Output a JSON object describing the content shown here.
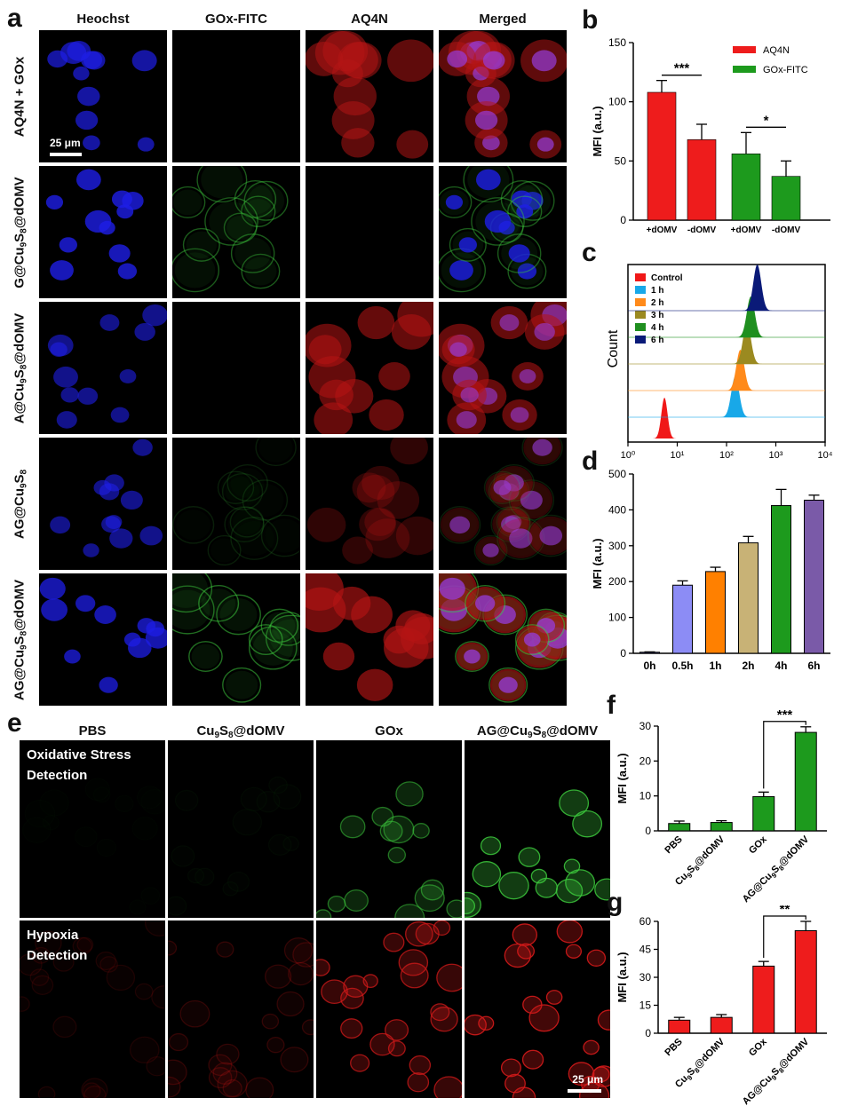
{
  "panel_a": {
    "letter": "a",
    "columns": [
      "Heochst",
      "GOx-FITC",
      "AQ4N",
      "Merged"
    ],
    "rows": [
      {
        "label_main": "AQ4N + GOx",
        "label_parts": []
      },
      {
        "label_main": "",
        "label_parts": [
          "G@Cu",
          "9",
          "S",
          "8",
          "@dOMV"
        ]
      },
      {
        "label_main": "",
        "label_parts": [
          "A@Cu",
          "9",
          "S",
          "8",
          "@dOMV"
        ]
      },
      {
        "label_main": "",
        "label_parts": [
          "AG@Cu",
          "9",
          "S",
          "8",
          ""
        ]
      },
      {
        "label_main": "",
        "label_parts": [
          "AG@Cu",
          "9",
          "S",
          "8",
          "@dOMV"
        ]
      }
    ],
    "scale_bar": "25 μm"
  },
  "panel_e": {
    "letter": "e",
    "columns": [
      {
        "parts": [
          "PBS"
        ]
      },
      {
        "parts": [
          "Cu",
          "9",
          "S",
          "8",
          "@dOMV"
        ]
      },
      {
        "parts": [
          "GOx"
        ]
      },
      {
        "parts": [
          "AG@Cu",
          "9",
          "S",
          "8",
          "@dOMV"
        ]
      }
    ],
    "row1_label": "Oxidative Stress\nDetection",
    "row2_label": "Hypoxia\nDetection",
    "scale_bar": "25 μm"
  },
  "colors": {
    "red": "#ee1c1c",
    "green": "#1d9a1d",
    "blue_bar": "#8c8cf5",
    "orange": "#ff8000",
    "khaki": "#c8b276",
    "purple": "#7a5aa8",
    "hist_red": "#f01818",
    "hist_cyan": "#18a8e8",
    "hist_orange": "#ff8a1a",
    "hist_olive": "#9b8a20",
    "hist_green": "#1f8f1f",
    "hist_navy": "#0a1a78"
  },
  "chart_data": [
    {
      "id": "b",
      "letter": "b",
      "type": "bar",
      "ylabel": "MFI (a.u.)",
      "ylim": [
        0,
        150
      ],
      "yticks": [
        0,
        50,
        100,
        150
      ],
      "groups": [
        {
          "name": "AQ4N",
          "categories": [
            "+dOMV",
            "-dOMV"
          ],
          "values": [
            108,
            68
          ],
          "errors": [
            10,
            13
          ],
          "color": "#ee1c1c"
        },
        {
          "name": "GOx-FITC",
          "categories": [
            "+dOMV",
            "-dOMV"
          ],
          "values": [
            56,
            37
          ],
          "errors": [
            18,
            13
          ],
          "color": "#1d9a1d"
        }
      ],
      "significance": [
        "***",
        "*"
      ],
      "legend": "top-right"
    },
    {
      "id": "c",
      "letter": "c",
      "type": "area",
      "ylabel": "Count",
      "xscale": "log",
      "xlim": [
        1,
        10000
      ],
      "xticks": [
        "10⁰",
        "10¹",
        "10²",
        "10³",
        "10⁴"
      ],
      "series": [
        {
          "name": "Control",
          "peak": 5.5
        },
        {
          "name": "1 h",
          "peak": 150
        },
        {
          "name": "2 h",
          "peak": 190
        },
        {
          "name": "3 h",
          "peak": 260
        },
        {
          "name": "4 h",
          "peak": 310
        },
        {
          "name": "6 h",
          "peak": 420
        }
      ],
      "legend": "top-left"
    },
    {
      "id": "d",
      "letter": "d",
      "type": "bar",
      "ylabel": "MFI (a.u.)",
      "ylim": [
        0,
        500
      ],
      "yticks": [
        0,
        100,
        200,
        300,
        400,
        500
      ],
      "categories": [
        "0h",
        "0.5h",
        "1h",
        "2h",
        "4h",
        "6h"
      ],
      "values": [
        3,
        190,
        228,
        308,
        412,
        427
      ],
      "errors": [
        1,
        12,
        12,
        18,
        45,
        14
      ]
    },
    {
      "id": "f",
      "letter": "f",
      "type": "bar",
      "ylabel": "MFI (a.u.)",
      "ylim": [
        0,
        30
      ],
      "yticks": [
        0,
        10,
        20,
        30
      ],
      "categories": [
        "PBS",
        "Cu9S8@dOMV",
        "GOx",
        "AG@Cu9S8@dOMV"
      ],
      "values": [
        2.1,
        2.4,
        9.8,
        28.2
      ],
      "errors": [
        0.7,
        0.5,
        1.3,
        1.6
      ],
      "significance": "***"
    },
    {
      "id": "g",
      "letter": "g",
      "type": "bar",
      "ylabel": "MFI (a.u.)",
      "ylim": [
        0,
        60
      ],
      "yticks": [
        0,
        15,
        30,
        45,
        60
      ],
      "categories": [
        "PBS",
        "Cu9S8@dOMV",
        "GOx",
        "AG@Cu9S8@dOMV"
      ],
      "values": [
        7,
        8.5,
        36,
        55
      ],
      "errors": [
        1.5,
        1.5,
        2.5,
        5
      ],
      "significance": "**"
    }
  ]
}
